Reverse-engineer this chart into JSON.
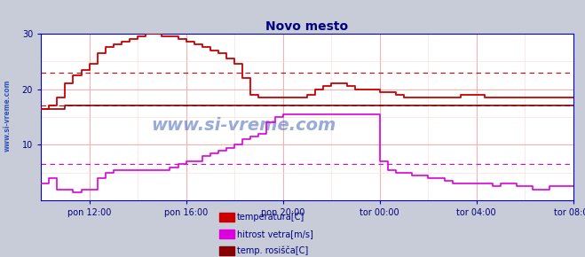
{
  "title": "Novo mesto",
  "title_color": "#000080",
  "outer_bg_color": "#c8ccd8",
  "plot_bg_color": "#ffffff",
  "grid_color": "#ffaaaa",
  "grid_color_minor": "#ffdddd",
  "watermark": "www.si-vreme.com",
  "watermark_color": "#4466bb",
  "tick_color": "#000080",
  "ylim": [
    0,
    30
  ],
  "yticks": [
    10,
    20,
    30
  ],
  "xtick_labels": [
    "pon 12:00",
    "pon 16:00",
    "pon 20:00",
    "tor 00:00",
    "tor 04:00",
    "tor 08:00"
  ],
  "xtick_positions": [
    2,
    6,
    10,
    14,
    18,
    22
  ],
  "xlim": [
    0,
    22
  ],
  "dashed_lines": [
    {
      "y": 23.0,
      "color": "#dd0000",
      "lw": 0.8
    },
    {
      "y": 17.0,
      "color": "#dd0000",
      "lw": 0.8
    },
    {
      "y": 6.5,
      "color": "#dd00dd",
      "lw": 0.8
    }
  ],
  "temp_times": [
    0,
    0.33,
    0.67,
    1,
    1.33,
    1.67,
    2,
    2.33,
    2.67,
    3,
    3.33,
    3.67,
    4,
    4.33,
    4.67,
    5,
    5.33,
    5.67,
    6,
    6.33,
    6.67,
    7,
    7.33,
    7.67,
    8,
    8.33,
    8.67,
    9,
    9.33,
    9.67,
    10,
    10.33,
    10.67,
    11,
    11.33,
    11.67,
    12,
    12.33,
    12.67,
    13,
    13.33,
    13.67,
    14,
    14.33,
    14.67,
    15,
    15.33,
    15.67,
    16,
    16.33,
    16.67,
    17,
    17.33,
    17.67,
    18,
    18.33,
    18.67,
    19,
    19.33,
    19.67,
    20,
    20.33,
    20.67,
    21,
    21.33,
    21.67,
    22
  ],
  "temp_values": [
    16.5,
    17.0,
    18.5,
    21.0,
    22.5,
    23.5,
    24.5,
    26.5,
    27.5,
    28.0,
    28.5,
    29.0,
    29.5,
    30.0,
    30.0,
    29.5,
    29.5,
    29.0,
    28.5,
    28.0,
    27.5,
    27.0,
    26.5,
    25.5,
    24.5,
    22.0,
    19.0,
    18.5,
    18.5,
    18.5,
    18.5,
    18.5,
    18.5,
    19.0,
    20.0,
    20.5,
    21.0,
    21.0,
    20.5,
    20.0,
    20.0,
    20.0,
    19.5,
    19.5,
    19.0,
    18.5,
    18.5,
    18.5,
    18.5,
    18.5,
    18.5,
    18.5,
    19.0,
    19.0,
    19.0,
    18.5,
    18.5,
    18.5,
    18.5,
    18.5,
    18.5,
    18.5,
    18.5,
    18.5,
    18.5,
    18.5,
    18.5
  ],
  "hitrost_times": [
    0,
    0.33,
    0.67,
    1,
    1.33,
    1.67,
    2,
    2.33,
    2.67,
    3,
    3.33,
    3.67,
    4,
    4.33,
    4.67,
    5,
    5.33,
    5.67,
    6,
    6.33,
    6.67,
    7,
    7.33,
    7.67,
    8,
    8.33,
    8.67,
    9,
    9.33,
    9.67,
    10,
    10.33,
    10.67,
    11,
    11.33,
    11.67,
    12,
    12.33,
    12.67,
    13,
    13.33,
    13.67,
    14,
    14.33,
    14.67,
    15,
    15.33,
    15.67,
    16,
    16.33,
    16.67,
    17,
    17.33,
    17.67,
    18,
    18.33,
    18.67,
    19,
    19.33,
    19.67,
    20,
    20.33,
    20.67,
    21,
    21.33,
    21.67,
    22
  ],
  "hitrost_values": [
    3,
    4,
    2,
    2,
    1.5,
    2,
    2,
    4,
    5,
    5.5,
    5.5,
    5.5,
    5.5,
    5.5,
    5.5,
    5.5,
    6,
    6.5,
    7,
    7,
    8,
    8.5,
    9,
    9.5,
    10,
    11,
    11.5,
    12,
    14,
    15,
    15.5,
    15.5,
    15.5,
    15.5,
    15.5,
    15.5,
    15.5,
    15.5,
    15.5,
    15.5,
    15.5,
    15.5,
    7,
    5.5,
    5,
    5,
    4.5,
    4.5,
    4,
    4,
    3.5,
    3,
    3,
    3,
    3,
    3,
    2.5,
    3,
    3,
    2.5,
    2.5,
    2,
    2,
    2.5,
    2.5,
    2.5,
    2.5
  ],
  "rosisce_times": [
    0,
    0.33,
    0.67,
    1,
    1.33,
    1.67,
    2,
    2.33,
    2.67,
    3,
    3.33,
    3.67,
    4,
    4.33,
    4.67,
    5,
    5.33,
    5.67,
    6,
    6.33,
    6.67,
    7,
    7.33,
    7.67,
    8,
    8.33,
    8.67,
    9,
    9.33,
    9.67,
    10,
    10.33,
    10.67,
    11,
    11.33,
    11.67,
    12,
    12.33,
    12.67,
    13,
    13.33,
    13.67,
    14,
    14.33,
    14.67,
    15,
    15.33,
    15.67,
    16,
    16.33,
    16.67,
    17,
    17.33,
    17.67,
    18,
    18.33,
    18.67,
    19,
    19.33,
    19.67,
    20,
    20.33,
    20.67,
    21,
    21.33,
    21.67,
    22
  ],
  "rosisce_values": [
    16.5,
    16.5,
    16.5,
    17.0,
    17.0,
    17.0,
    17.0,
    17.0,
    17.0,
    17.0,
    17.0,
    17.0,
    17.0,
    17.0,
    17.0,
    17.0,
    17.0,
    17.0,
    17.0,
    17.0,
    17.0,
    17.0,
    17.0,
    17.0,
    17.0,
    17.0,
    17.0,
    17.0,
    17.0,
    17.0,
    17.0,
    17.0,
    17.0,
    17.0,
    17.0,
    17.0,
    17.0,
    17.0,
    17.0,
    17.0,
    17.0,
    17.0,
    17.0,
    17.0,
    17.0,
    17.0,
    17.0,
    17.0,
    17.0,
    17.0,
    17.0,
    17.0,
    17.0,
    17.0,
    17.0,
    17.0,
    17.0,
    17.0,
    17.0,
    17.0,
    17.0,
    17.0,
    17.0,
    17.0,
    17.0,
    17.0,
    17.0
  ],
  "temp_color": "#cc0000",
  "hitrost_color": "#dd00dd",
  "rosisce_color": "#880000",
  "legend": [
    {
      "label": "temperatura[C]",
      "color": "#cc0000"
    },
    {
      "label": "hitrost vetra[m/s]",
      "color": "#dd00dd"
    },
    {
      "label": "temp. rosišča[C]",
      "color": "#880000"
    }
  ],
  "sidebar_text": "www.si-vreme.com",
  "sidebar_color": "#3355bb",
  "axis_color": "#0000cc",
  "spine_color": "#0000cc"
}
